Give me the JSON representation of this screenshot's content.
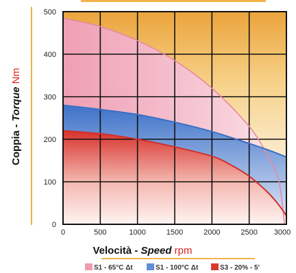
{
  "chart_data": {
    "type": "area",
    "x_range": [
      0,
      3000
    ],
    "y_range": [
      0,
      500
    ],
    "x_ticks": [
      0,
      500,
      1000,
      1500,
      2000,
      2500,
      3000
    ],
    "y_ticks": [
      0,
      100,
      200,
      300,
      400,
      500
    ],
    "grid": true,
    "xlabel": {
      "part1": "Velocità - ",
      "part2": "Speed",
      "part3": " rpm"
    },
    "ylabel": {
      "part1": "Coppia - ",
      "part2": "Torque",
      "part3": " Nm"
    },
    "legend_position": "bottom",
    "series": [
      {
        "name": "S1 - 65°C Δt",
        "color": "#e8899f",
        "fill": "#f2b8c6",
        "x": [
          0,
          500,
          1000,
          1500,
          2000,
          2500,
          2750,
          2900,
          2975
        ],
        "y": [
          485,
          465,
          432,
          385,
          320,
          230,
          160,
          100,
          0
        ]
      },
      {
        "name": "S1 - 100°C Δt",
        "color": "#3a6fc4",
        "fill": "#6f9be0",
        "x": [
          0,
          500,
          1000,
          1500,
          2000,
          2500,
          2800,
          3000
        ],
        "y": [
          280,
          270,
          258,
          240,
          218,
          190,
          172,
          158
        ]
      },
      {
        "name": "S3 - 20% - 5'",
        "color": "#d0302a",
        "fill": "#e4544a",
        "x": [
          0,
          500,
          1000,
          1500,
          2000,
          2250,
          2500,
          2750,
          2900,
          3000
        ],
        "y": [
          220,
          213,
          200,
          182,
          160,
          140,
          113,
          75,
          45,
          20
        ]
      }
    ]
  }
}
